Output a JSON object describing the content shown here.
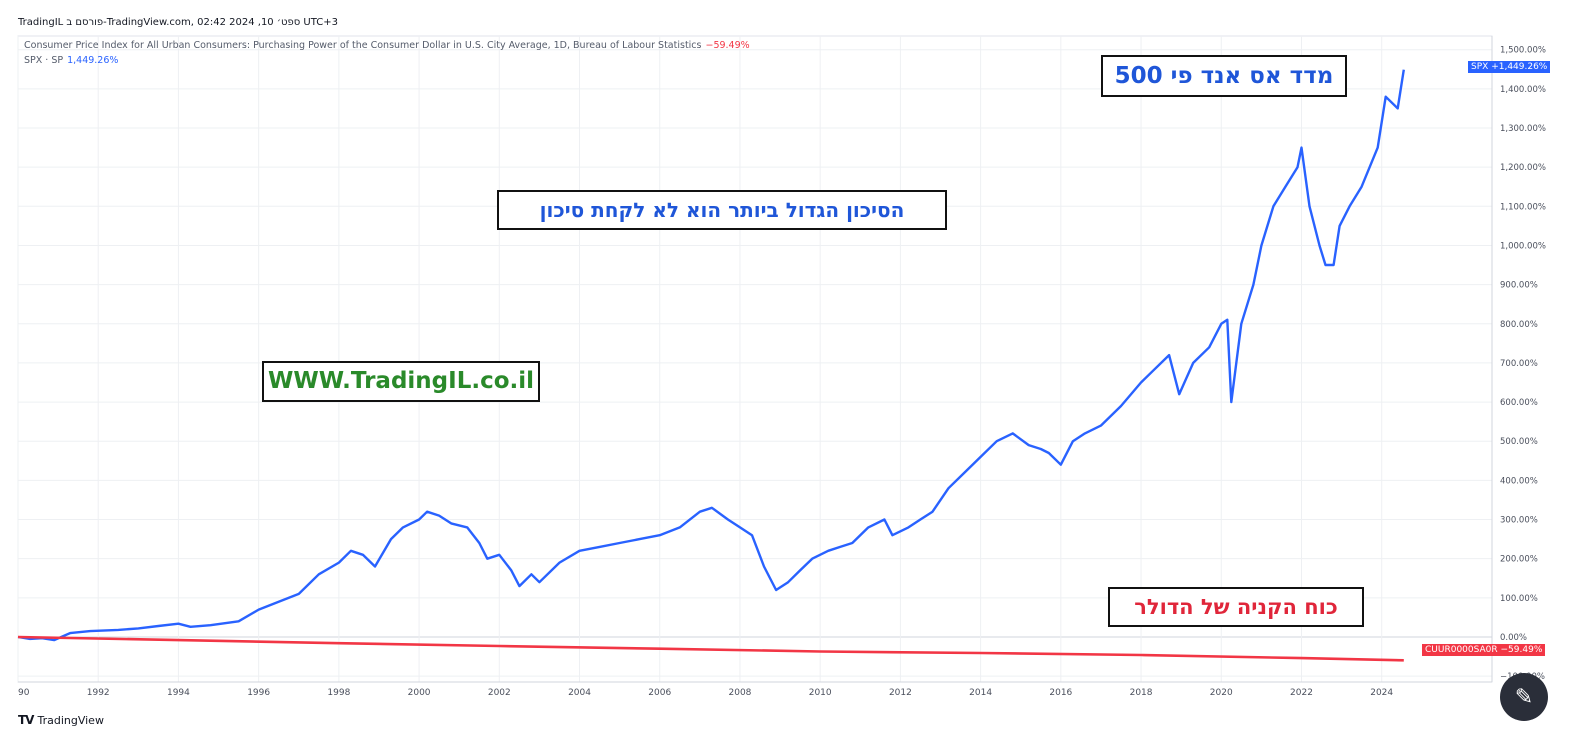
{
  "header": {
    "text": "TradingIL פורסם ב-TradingView.com, ספט׳ 10, 2024 02:42 UTC+3"
  },
  "legend": {
    "cpi": {
      "label": "Consumer Price Index for All Urban Consumers: Purchasing Power of the Consumer Dollar in U.S. City Average, 1D, Bureau of Labour Statistics",
      "change": "−59.49%"
    },
    "spx": {
      "label": "SPX · SP",
      "change": "1,449.26%"
    }
  },
  "annotations": {
    "sp500": "מדד אס אנד פי 500",
    "risk": "הסיכון הגדול ביותר הוא לא לקחת סיכון",
    "website": "WWW.TradingIL.co.il",
    "dollar": "כוח הקניה של הדולר"
  },
  "price_tags": {
    "spx": {
      "name": "SPX",
      "value": "+1,449.26%",
      "color": "#2962ff"
    },
    "cpi": {
      "name": "CUUR0000SA0R",
      "value": "−59.49%",
      "color": "#f23645"
    }
  },
  "footer": {
    "logo_mark": "TV",
    "brand": "TradingView"
  },
  "magic_button": {
    "icon": "magic-wand-icon"
  },
  "chart_data": {
    "type": "line",
    "y_unit": "%",
    "x_axis_ticks": [
      "90",
      "1992",
      "1994",
      "1996",
      "1998",
      "2000",
      "2002",
      "2004",
      "2006",
      "2008",
      "2010",
      "2012",
      "2014",
      "2016",
      "2018",
      "2020",
      "2022",
      "2024"
    ],
    "y_axis_ticks": [
      "1,500.00%",
      "1,400.00%",
      "1,300.00%",
      "1,200.00%",
      "1,100.00%",
      "1,000.00%",
      "900.00%",
      "800.00%",
      "700.00%",
      "600.00%",
      "500.00%",
      "400.00%",
      "300.00%",
      "200.00%",
      "100.00%",
      "0.00%",
      "−100.00%"
    ],
    "ylim": [
      -115,
      1535
    ],
    "xlim": [
      1990.0,
      2026.75
    ],
    "grid": true,
    "series": [
      {
        "name": "SPX",
        "color": "#2962ff",
        "x": [
          1990.0,
          1990.3,
          1990.6,
          1990.9,
          1991.3,
          1991.8,
          1992.5,
          1993.0,
          1993.5,
          1994.0,
          1994.3,
          1994.8,
          1995.5,
          1996.0,
          1996.5,
          1997.0,
          1997.5,
          1998.0,
          1998.3,
          1998.6,
          1998.9,
          1999.3,
          1999.6,
          2000.0,
          2000.2,
          2000.5,
          2000.8,
          2001.2,
          2001.5,
          2001.7,
          2002.0,
          2002.3,
          2002.5,
          2002.8,
          2003.0,
          2003.5,
          2004.0,
          2004.5,
          2005.0,
          2005.5,
          2006.0,
          2006.5,
          2007.0,
          2007.3,
          2007.7,
          2008.0,
          2008.3,
          2008.6,
          2008.9,
          2009.2,
          2009.5,
          2009.8,
          2010.2,
          2010.5,
          2010.8,
          2011.2,
          2011.6,
          2011.8,
          2012.2,
          2012.5,
          2012.8,
          2013.2,
          2013.6,
          2014.0,
          2014.4,
          2014.8,
          2015.2,
          2015.5,
          2015.7,
          2016.0,
          2016.3,
          2016.6,
          2017.0,
          2017.5,
          2018.0,
          2018.3,
          2018.7,
          2018.95,
          2019.3,
          2019.7,
          2020.0,
          2020.15,
          2020.25,
          2020.5,
          2020.8,
          2021.0,
          2021.3,
          2021.6,
          2021.9,
          2022.0,
          2022.2,
          2022.45,
          2022.6,
          2022.8,
          2022.95,
          2023.2,
          2023.5,
          2023.9,
          2024.1,
          2024.4,
          2024.55
        ],
        "values": [
          0,
          -5,
          -3,
          -8,
          10,
          15,
          18,
          22,
          28,
          34,
          26,
          30,
          40,
          70,
          90,
          110,
          160,
          190,
          220,
          210,
          180,
          250,
          280,
          300,
          320,
          310,
          290,
          280,
          240,
          200,
          210,
          170,
          130,
          160,
          140,
          190,
          220,
          230,
          240,
          250,
          260,
          280,
          320,
          330,
          300,
          280,
          260,
          180,
          120,
          140,
          170,
          200,
          220,
          230,
          240,
          280,
          300,
          260,
          280,
          300,
          320,
          380,
          420,
          460,
          500,
          520,
          490,
          480,
          470,
          440,
          500,
          520,
          540,
          590,
          650,
          680,
          720,
          620,
          700,
          740,
          800,
          810,
          600,
          800,
          900,
          1000,
          1100,
          1150,
          1200,
          1250,
          1100,
          1000,
          950,
          950,
          1050,
          1100,
          1150,
          1250,
          1380,
          1350,
          1449
        ]
      },
      {
        "name": "CUUR0000SA0R",
        "color": "#f23645",
        "x": [
          1990.0,
          1994.0,
          1998.0,
          2002.0,
          2006.0,
          2010.0,
          2014.0,
          2018.0,
          2022.0,
          2024.55
        ],
        "values": [
          0,
          -8,
          -16,
          -23,
          -30,
          -37,
          -41,
          -46,
          -54,
          -59.49
        ]
      }
    ]
  }
}
